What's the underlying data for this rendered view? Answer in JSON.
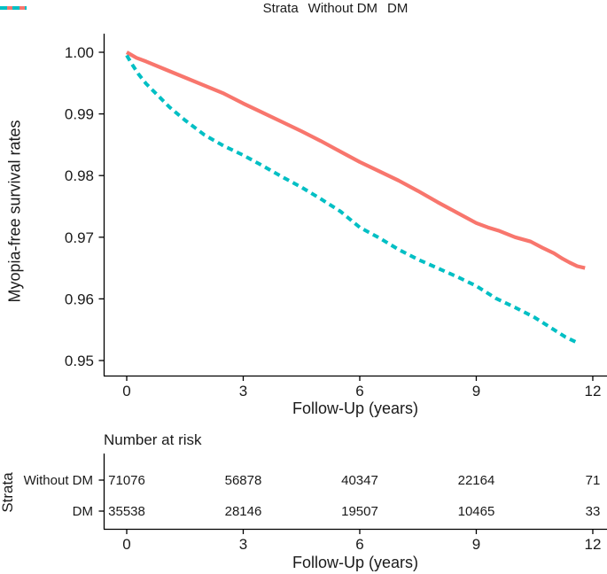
{
  "legend": {
    "title": "Strata",
    "items": [
      {
        "label": "Without DM",
        "color": "#F8766D",
        "style": "solid"
      },
      {
        "label": "DM",
        "color": "#00BFC4",
        "style": "dashed"
      }
    ]
  },
  "chart_data": {
    "type": "line",
    "title": "",
    "xlabel": "Follow-Up (years)",
    "ylabel": "Myopia-free survival rates",
    "xlim": [
      0,
      12
    ],
    "ylim": [
      0.95,
      1.0
    ],
    "xticks": [
      0,
      3,
      6,
      9,
      12
    ],
    "yticks": [
      {
        "label": "1.00",
        "value": 1.0
      },
      {
        "label": "0.99",
        "value": 0.99
      },
      {
        "label": "0.98",
        "value": 0.98
      },
      {
        "label": "0.97",
        "value": 0.97
      },
      {
        "label": "0.96",
        "value": 0.96
      },
      {
        "label": "0.95",
        "value": 0.95
      }
    ],
    "legend_position": "top",
    "grid": false,
    "series": [
      {
        "name": "Without DM",
        "color": "#F8766D",
        "dash": "solid",
        "points": [
          [
            0,
            1.0
          ],
          [
            0.25,
            0.9991
          ],
          [
            0.5,
            0.9985
          ],
          [
            1,
            0.9972
          ],
          [
            1.5,
            0.9959
          ],
          [
            2,
            0.9946
          ],
          [
            2.5,
            0.9933
          ],
          [
            3,
            0.9917
          ],
          [
            3.5,
            0.9902
          ],
          [
            4,
            0.9887
          ],
          [
            4.5,
            0.9872
          ],
          [
            5,
            0.9856
          ],
          [
            5.5,
            0.9839
          ],
          [
            6,
            0.9822
          ],
          [
            6.5,
            0.9807
          ],
          [
            7,
            0.9792
          ],
          [
            7.5,
            0.9775
          ],
          [
            8,
            0.9757
          ],
          [
            8.5,
            0.974
          ],
          [
            9,
            0.9723
          ],
          [
            9.3,
            0.9716
          ],
          [
            9.6,
            0.971
          ],
          [
            10,
            0.97
          ],
          [
            10.4,
            0.9693
          ],
          [
            10.7,
            0.9683
          ],
          [
            11,
            0.9674
          ],
          [
            11.2,
            0.9666
          ],
          [
            11.4,
            0.9659
          ],
          [
            11.6,
            0.9653
          ],
          [
            11.8,
            0.965
          ]
        ]
      },
      {
        "name": "DM",
        "color": "#00BFC4",
        "dash": "dashed",
        "points": [
          [
            0,
            0.9995
          ],
          [
            0.12,
            0.9982
          ],
          [
            0.3,
            0.9965
          ],
          [
            0.5,
            0.9949
          ],
          [
            0.8,
            0.993
          ],
          [
            1.1,
            0.9911
          ],
          [
            1.5,
            0.989
          ],
          [
            2,
            0.9866
          ],
          [
            2.5,
            0.9848
          ],
          [
            3,
            0.9833
          ],
          [
            3.5,
            0.9816
          ],
          [
            4,
            0.9798
          ],
          [
            4.5,
            0.9781
          ],
          [
            5,
            0.9762
          ],
          [
            5.5,
            0.9742
          ],
          [
            6,
            0.9716
          ],
          [
            6.5,
            0.9699
          ],
          [
            7,
            0.968
          ],
          [
            7.5,
            0.9664
          ],
          [
            8,
            0.965
          ],
          [
            8.5,
            0.9636
          ],
          [
            9,
            0.9621
          ],
          [
            9.5,
            0.9601
          ],
          [
            10,
            0.9586
          ],
          [
            10.5,
            0.957
          ],
          [
            11,
            0.955
          ],
          [
            11.3,
            0.9538
          ],
          [
            11.6,
            0.9529
          ]
        ]
      }
    ]
  },
  "risk_table": {
    "title": "Number at risk",
    "axis_label": "Strata",
    "xlabel": "Follow-Up (years)",
    "xticks": [
      0,
      3,
      6,
      9,
      12
    ],
    "rows": [
      {
        "label": "Without DM",
        "values": [
          "71076",
          "56878",
          "40347",
          "22164",
          "71"
        ]
      },
      {
        "label": "DM",
        "values": [
          "35538",
          "28146",
          "19507",
          "10465",
          "33"
        ]
      }
    ]
  },
  "colors": {
    "without_dm": "#F8766D",
    "dm": "#00BFC4",
    "axis": "#000000",
    "text": "#1a1a1a"
  }
}
